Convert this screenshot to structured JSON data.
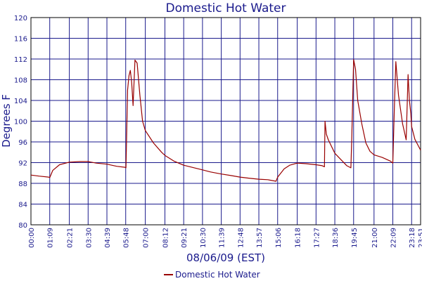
{
  "chart_data": {
    "type": "line",
    "title": "Domestic Hot Water",
    "xlabel": "08/06/09 (EST)",
    "ylabel": "Degrees F",
    "x_unit": "HH:MM",
    "xlim": [
      "00:00",
      "23:51"
    ],
    "ylim": [
      80,
      120
    ],
    "y_ticks": [
      80,
      84,
      88,
      92,
      96,
      100,
      104,
      108,
      112,
      116,
      120
    ],
    "x_ticks": [
      "00:00",
      "01:09",
      "02:21",
      "03:30",
      "04:39",
      "05:48",
      "07:00",
      "08:12",
      "09:21",
      "10:30",
      "11:39",
      "12:48",
      "13:57",
      "15:06",
      "16:18",
      "17:27",
      "18:36",
      "19:45",
      "21:00",
      "22:09",
      "23:18",
      "23:51"
    ],
    "grid": true,
    "legend_position": "bottom",
    "series": [
      {
        "name": "Domestic Hot Water",
        "color": "#990000",
        "points": [
          [
            "00:00",
            89.6
          ],
          [
            "00:30",
            89.4
          ],
          [
            "01:05",
            89.2
          ],
          [
            "01:09",
            89.1
          ],
          [
            "01:20",
            90.5
          ],
          [
            "01:45",
            91.6
          ],
          [
            "02:21",
            92.1
          ],
          [
            "03:00",
            92.2
          ],
          [
            "03:30",
            92.2
          ],
          [
            "04:00",
            91.9
          ],
          [
            "04:39",
            91.7
          ],
          [
            "05:15",
            91.3
          ],
          [
            "05:45",
            91.1
          ],
          [
            "05:49",
            91.0
          ],
          [
            "05:55",
            106
          ],
          [
            "06:00",
            108.8
          ],
          [
            "06:05",
            109.8
          ],
          [
            "06:10",
            107.5
          ],
          [
            "06:15",
            103
          ],
          [
            "06:22",
            111.8
          ],
          [
            "06:30",
            111.2
          ],
          [
            "06:40",
            105
          ],
          [
            "06:50",
            100
          ],
          [
            "07:00",
            98.2
          ],
          [
            "07:30",
            95.8
          ],
          [
            "08:00",
            94.0
          ],
          [
            "08:12",
            93.4
          ],
          [
            "08:45",
            92.3
          ],
          [
            "09:21",
            91.5
          ],
          [
            "10:00",
            91.0
          ],
          [
            "10:30",
            90.6
          ],
          [
            "11:00",
            90.2
          ],
          [
            "11:39",
            89.8
          ],
          [
            "12:15",
            89.5
          ],
          [
            "12:48",
            89.2
          ],
          [
            "13:20",
            89.0
          ],
          [
            "13:57",
            88.8
          ],
          [
            "14:30",
            88.7
          ],
          [
            "15:00",
            88.4
          ],
          [
            "15:06",
            89.2
          ],
          [
            "15:30",
            90.8
          ],
          [
            "15:50",
            91.5
          ],
          [
            "16:18",
            91.9
          ],
          [
            "16:50",
            91.8
          ],
          [
            "17:27",
            91.6
          ],
          [
            "17:50",
            91.4
          ],
          [
            "17:58",
            91.2
          ],
          [
            "18:00",
            100
          ],
          [
            "18:05",
            97.5
          ],
          [
            "18:12",
            96.4
          ],
          [
            "18:36",
            93.8
          ],
          [
            "19:00",
            92.5
          ],
          [
            "19:20",
            91.4
          ],
          [
            "19:35",
            91.0
          ],
          [
            "19:38",
            96.5
          ],
          [
            "19:45",
            111.9
          ],
          [
            "19:52",
            110
          ],
          [
            "20:00",
            104
          ],
          [
            "20:15",
            99.5
          ],
          [
            "20:30",
            95.8
          ],
          [
            "20:45",
            94.2
          ],
          [
            "21:00",
            93.5
          ],
          [
            "21:30",
            93.0
          ],
          [
            "22:00",
            92.3
          ],
          [
            "22:09",
            91.9
          ],
          [
            "22:15",
            103
          ],
          [
            "22:20",
            111.5
          ],
          [
            "22:30",
            105
          ],
          [
            "22:45",
            99.5
          ],
          [
            "22:58",
            96.4
          ],
          [
            "23:05",
            109
          ],
          [
            "23:10",
            104
          ],
          [
            "23:15",
            101.5
          ],
          [
            "23:18",
            99
          ],
          [
            "23:30",
            96.5
          ],
          [
            "23:45",
            95.0
          ],
          [
            "23:51",
            94.4
          ]
        ]
      }
    ]
  }
}
